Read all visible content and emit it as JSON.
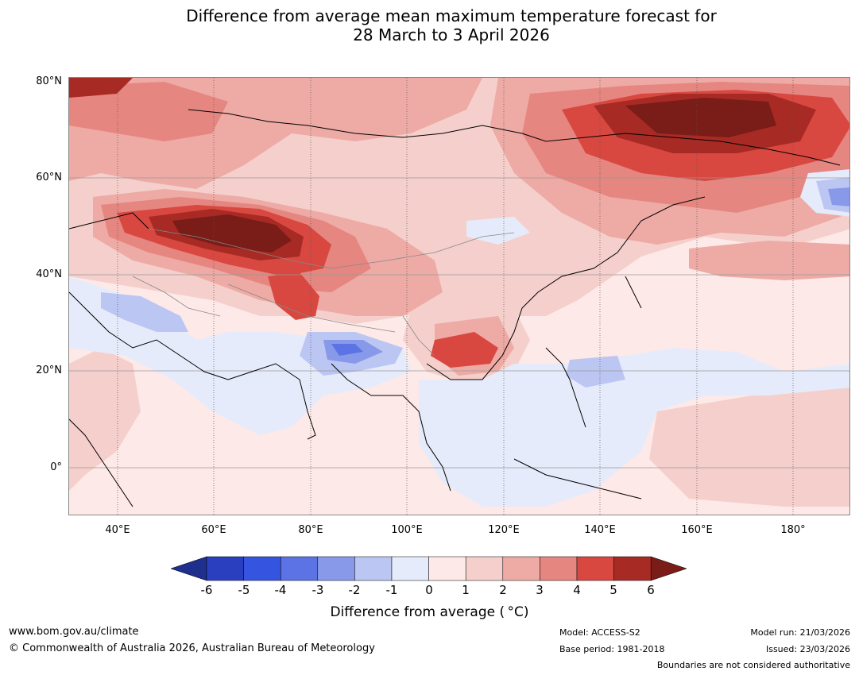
{
  "title": {
    "line1": "Difference from average mean maximum temperature forecast for",
    "line2": "28 March to 3 April 2026"
  },
  "map": {
    "region": "Asia",
    "lat_labels": [
      "80°N",
      "60°N",
      "40°N",
      "20°N",
      "0°"
    ],
    "lon_labels": [
      "40°E",
      "60°E",
      "80°E",
      "100°E",
      "120°E",
      "140°E",
      "160°E",
      "180°"
    ],
    "lat_range": [
      -10,
      80
    ],
    "lon_range": [
      30,
      192
    ]
  },
  "legend": {
    "ticks": [
      "-6",
      "-5",
      "-4",
      "-3",
      "-2",
      "-1",
      "0",
      "1",
      "2",
      "3",
      "4",
      "5",
      "6"
    ],
    "colors": [
      "#1f2f8e",
      "#2a3fbf",
      "#3555e0",
      "#5b73e4",
      "#8899ea",
      "#bcc6f3",
      "#e6ebfb",
      "#fde9e7",
      "#f5cfcb",
      "#eeaaa5",
      "#e68680",
      "#d84840",
      "#a82a24",
      "#7a1c17"
    ],
    "label": "Difference from average ( °C)"
  },
  "footer": {
    "website": "www.bom.gov.au/climate",
    "copyright": "© Commonwealth of Australia 2026, Australian Bureau of Meteorology",
    "model": "Model: ACCESS-S2",
    "base_period": "Base period: 1981-2018",
    "model_run": "Model run: 21/03/2026",
    "issued": "Issued: 23/03/2026",
    "disclaimer": "Boundaries are not considered authoritative"
  }
}
